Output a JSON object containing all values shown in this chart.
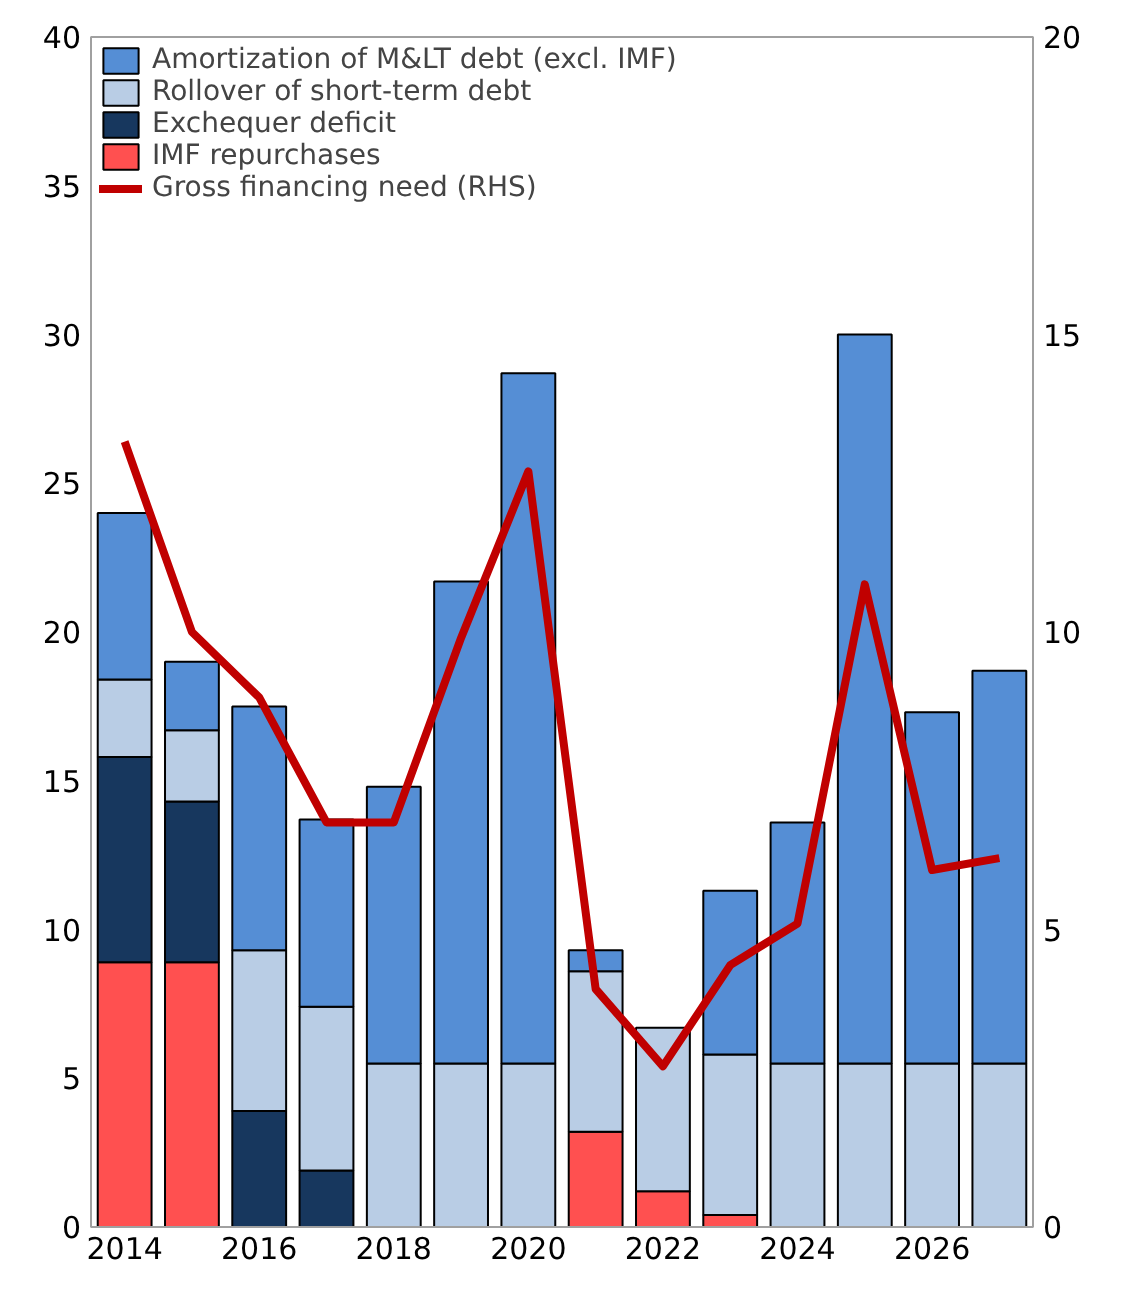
{
  "chart_data": {
    "type": "bar",
    "stacked": true,
    "x": [
      2014,
      2015,
      2016,
      2017,
      2018,
      2019,
      2020,
      2021,
      2022,
      2023,
      2024,
      2025,
      2026,
      2027
    ],
    "xlim": [
      2013.5,
      2027.5
    ],
    "xticks": [
      2014,
      2016,
      2018,
      2020,
      2022,
      2024,
      2026
    ],
    "ylim": [
      0,
      40
    ],
    "yticks": [
      0,
      5,
      10,
      15,
      20,
      25,
      30,
      35,
      40
    ],
    "y2lim": [
      0,
      20
    ],
    "y2ticks": [
      0,
      5,
      10,
      15,
      20
    ],
    "series": [
      {
        "name": "IMF repurchases",
        "color": "#ff5050",
        "values": [
          8.9,
          8.9,
          null,
          null,
          null,
          null,
          null,
          3.2,
          1.2,
          0.4,
          null,
          null,
          null,
          null
        ]
      },
      {
        "name": "Exchequer deficit",
        "color": "#17375e",
        "values": [
          6.9,
          5.4,
          3.9,
          1.9,
          null,
          null,
          null,
          null,
          null,
          null,
          null,
          null,
          null,
          null
        ]
      },
      {
        "name": "Rollover of short-term debt",
        "color": "#b9cde5",
        "values": [
          2.6,
          2.4,
          5.4,
          5.5,
          5.5,
          5.5,
          5.5,
          5.4,
          5.5,
          5.4,
          5.5,
          5.5,
          5.5,
          5.5
        ]
      },
      {
        "name": "Amortization of M&LT debt (excl. IMF)",
        "color": "#558ed5",
        "values": [
          5.6,
          2.3,
          8.2,
          6.3,
          9.3,
          16.2,
          23.2,
          0.7,
          null,
          5.5,
          8.1,
          24.5,
          11.8,
          13.2
        ]
      },
      {
        "name": "Gross financing need (RHS)",
        "type": "line",
        "axis": "y2",
        "color": "#c00000",
        "values": [
          13.2,
          10.0,
          8.9,
          6.8,
          6.8,
          9.9,
          12.7,
          4.0,
          2.7,
          4.4,
          5.1,
          10.8,
          6.0,
          6.2
        ]
      }
    ],
    "legend": "top left",
    "grid": false
  }
}
